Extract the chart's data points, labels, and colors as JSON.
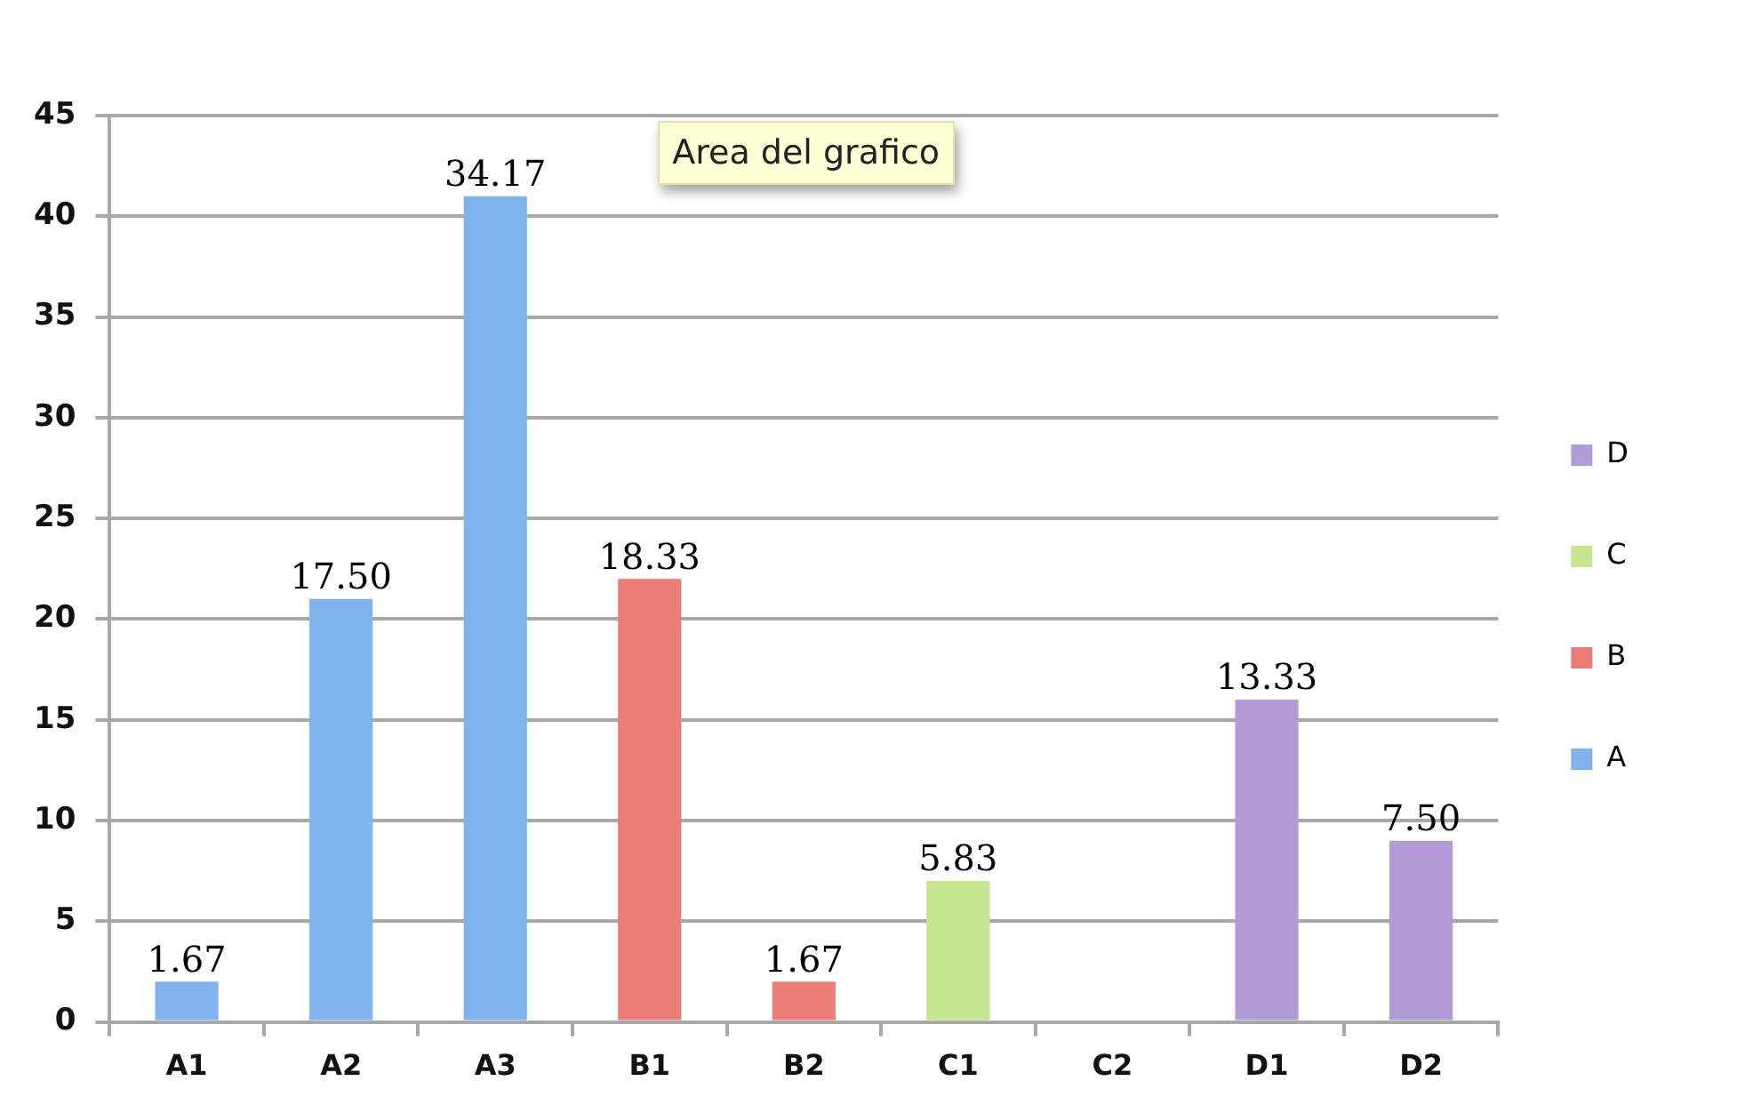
{
  "chart_data": {
    "type": "bar",
    "categories": [
      "A1",
      "A2",
      "A3",
      "B1",
      "B2",
      "C1",
      "C2",
      "D1",
      "D2"
    ],
    "series": [
      {
        "name": "A",
        "color": "#80b2ee",
        "values": [
          2,
          21,
          41,
          null,
          null,
          null,
          null,
          null,
          null
        ]
      },
      {
        "name": "B",
        "color": "#ec7d78",
        "values": [
          null,
          null,
          null,
          22,
          2,
          null,
          null,
          null,
          null
        ]
      },
      {
        "name": "C",
        "color": "#c5e58f",
        "values": [
          null,
          null,
          null,
          null,
          null,
          7,
          null,
          null,
          null
        ]
      },
      {
        "name": "D",
        "color": "#b59ad8",
        "values": [
          null,
          null,
          null,
          null,
          null,
          null,
          null,
          16,
          9
        ]
      }
    ],
    "ylim": [
      0,
      45
    ],
    "yticks": [
      0,
      5,
      10,
      15,
      20,
      25,
      30,
      35,
      40,
      45
    ],
    "grid": "y",
    "legend": "right",
    "annotations": [
      "Area del grafico",
      {
        "text": "1.67",
        "x": "A1",
        "y": 2
      },
      {
        "text": "17.50",
        "x": "A2",
        "y": 21
      },
      {
        "text": "34.17",
        "x": "A3",
        "y": 41
      },
      {
        "text": "18.33",
        "x": "B1",
        "y": 22
      },
      {
        "text": "1.67",
        "x": "B2",
        "y": 2
      },
      {
        "text": "5.83",
        "x": "C1",
        "y": 7
      },
      {
        "text": "13.33",
        "x": "D1",
        "y": 16
      },
      {
        "text": "7.50",
        "x": "D2",
        "y": 9
      }
    ]
  }
}
